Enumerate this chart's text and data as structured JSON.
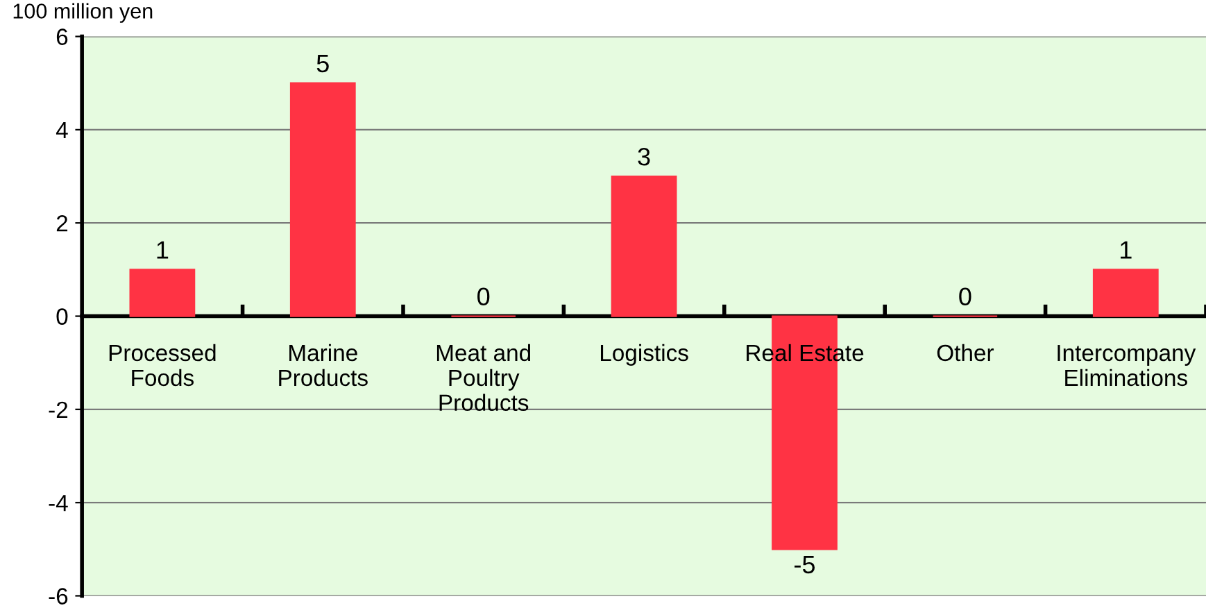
{
  "chart_data": {
    "type": "bar",
    "ylabel": "100 million yen",
    "categories": [
      "Processed\nFoods",
      "Marine\nProducts",
      "Meat and\nPoultry\nProducts",
      "Logistics",
      "Real Estate",
      "Other",
      "Intercompany\nEliminations"
    ],
    "values": [
      1,
      5,
      0,
      3,
      -5,
      0,
      1
    ],
    "color": "#ff3344",
    "ylim": [
      -6,
      6
    ],
    "yticks": [
      -6,
      -4,
      -2,
      0,
      2,
      4,
      6
    ],
    "grid": "y",
    "data_labels": true
  }
}
